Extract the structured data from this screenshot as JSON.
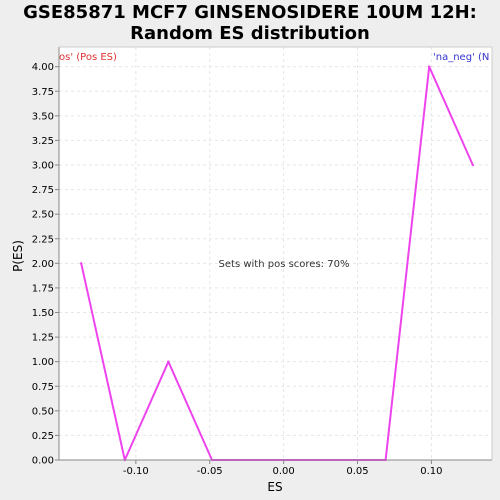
{
  "chart_data": {
    "type": "line",
    "title_line1": "GSE85871 MCF7 GINSENOSIDERE 10UM 12H:",
    "title_line2": "Random ES distribution",
    "xlabel": "ES",
    "ylabel": "P(ES)",
    "xlim": [
      -0.152,
      0.141
    ],
    "ylim": [
      0,
      4.2
    ],
    "x_ticks": [
      -0.1,
      -0.05,
      0.0,
      0.05,
      0.1
    ],
    "x_tick_labels": [
      "-0.10",
      "-0.05",
      "0.00",
      "0.05",
      "0.10"
    ],
    "y_ticks": [
      0,
      0.25,
      0.5,
      0.75,
      1.0,
      1.25,
      1.5,
      1.75,
      2.0,
      2.25,
      2.5,
      2.75,
      3.0,
      3.25,
      3.5,
      3.75,
      4.0
    ],
    "y_tick_labels": [
      "0.00",
      "0.25",
      "0.50",
      "0.75",
      "1.00",
      "1.25",
      "1.50",
      "1.75",
      "2.00",
      "2.25",
      "2.50",
      "2.75",
      "3.00",
      "3.25",
      "3.50",
      "3.75",
      "4.00"
    ],
    "grid": true,
    "series": [
      {
        "color": "#ee44ee",
        "x": [
          -0.137,
          -0.1075,
          -0.078,
          -0.0485,
          0.069,
          0.0985,
          0.128
        ],
        "y": [
          2.0,
          0.0,
          1.0,
          0.0,
          0.0,
          4.0,
          3.0
        ]
      }
    ],
    "legend_left": "os' (Pos ES)",
    "legend_left_color": "#dd3333",
    "legend_right": "'na_neg' (N",
    "legend_right_color": "#3333cc",
    "annotation": "Sets with pos scores: 70%"
  }
}
